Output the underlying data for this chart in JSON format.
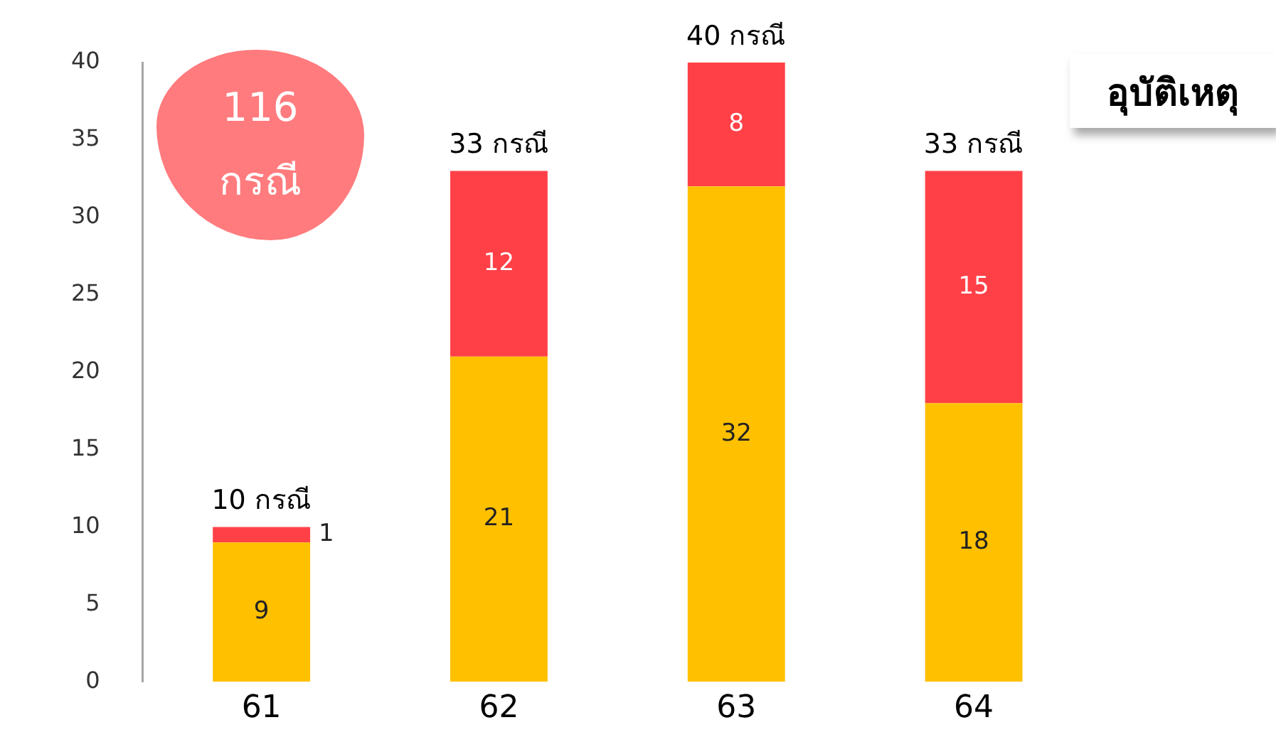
{
  "chart_data": {
    "type": "bar",
    "title": "อุบัติเหตุ",
    "annotations": [
      "116 กรณี"
    ],
    "categories": [
      "61",
      "62",
      "63",
      "64"
    ],
    "series": [
      {
        "color": "#ffc000",
        "values": [
          9,
          21,
          32,
          18
        ]
      },
      {
        "color": "#ff4147",
        "values": [
          1,
          12,
          8,
          15
        ]
      }
    ],
    "stacked": true,
    "data_labels": true,
    "totals": [
      "10 กรณี",
      "33 กรณี",
      "40 กรณี",
      "33 กรณี"
    ],
    "ylim": [
      0,
      40
    ],
    "yticks": [
      0,
      5,
      10,
      15,
      20,
      25,
      30,
      35,
      40
    ]
  }
}
